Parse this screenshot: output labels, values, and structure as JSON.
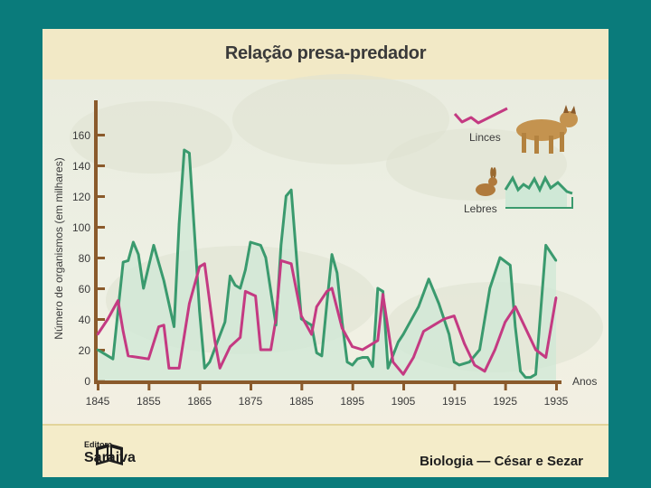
{
  "slide": {
    "title": "Relação presa-predador",
    "footer_left_top": "Editora",
    "footer_left_name": "Saraiva",
    "footer_right": "Biologia — César e Sezar"
  },
  "chart_data": {
    "type": "line",
    "title": "Relação presa-predador",
    "ylabel": "Número de organismos (em milhares)",
    "xlabel": "Anos",
    "ylim": [
      0,
      160
    ],
    "xlim": [
      1845,
      1935
    ],
    "x_ticks": [
      "1845",
      "1855",
      "1865",
      "1875",
      "1885",
      "1895",
      "1905",
      "1915",
      "1925",
      "1935"
    ],
    "y_ticks": [
      "0",
      "20",
      "40",
      "60",
      "80",
      "100",
      "120",
      "140",
      "160"
    ],
    "legend": [
      "Linces",
      "Lebres"
    ],
    "legend_position": "top-right",
    "colors": {
      "Lebres": "#3a9a6e",
      "Linces": "#c43a82",
      "axis": "#8a5a2b",
      "fill": "#cfe8d6"
    },
    "series": [
      {
        "name": "Lebres",
        "x": [
          1845,
          1848,
          1850,
          1851,
          1852,
          1853,
          1854,
          1855,
          1856,
          1858,
          1860,
          1861,
          1862,
          1863,
          1865,
          1866,
          1867,
          1870,
          1871,
          1872,
          1873,
          1874,
          1875,
          1877,
          1878,
          1880,
          1881,
          1882,
          1883,
          1884,
          1885,
          1887,
          1888,
          1889,
          1890,
          1891,
          1892,
          1893,
          1894,
          1895,
          1896,
          1897,
          1898,
          1899,
          1900,
          1901,
          1902,
          1904,
          1905,
          1906,
          1908,
          1910,
          1912,
          1914,
          1915,
          1916,
          1918,
          1920,
          1922,
          1924,
          1926,
          1927,
          1928,
          1929,
          1930,
          1931,
          1933,
          1935
        ],
        "values": [
          20,
          14,
          77,
          78,
          90,
          82,
          60,
          74,
          88,
          65,
          35,
          102,
          150,
          148,
          45,
          8,
          12,
          38,
          68,
          62,
          60,
          72,
          90,
          88,
          80,
          36,
          88,
          120,
          124,
          82,
          40,
          36,
          18,
          16,
          50,
          82,
          70,
          38,
          12,
          10,
          14,
          15,
          15,
          9,
          60,
          58,
          8,
          25,
          30,
          36,
          48,
          66,
          50,
          30,
          12,
          10,
          12,
          20,
          60,
          80,
          75,
          35,
          6,
          2,
          2,
          4,
          88,
          78
        ]
      },
      {
        "name": "Linces",
        "x": [
          1845,
          1847,
          1849,
          1850,
          1851,
          1853,
          1855,
          1857,
          1858,
          1859,
          1861,
          1863,
          1865,
          1866,
          1868,
          1869,
          1871,
          1873,
          1874,
          1876,
          1877,
          1879,
          1880,
          1881,
          1883,
          1885,
          1887,
          1888,
          1890,
          1891,
          1893,
          1895,
          1897,
          1899,
          1900,
          1901,
          1903,
          1905,
          1907,
          1909,
          1911,
          1913,
          1915,
          1917,
          1919,
          1921,
          1923,
          1925,
          1927,
          1929,
          1931,
          1933,
          1935
        ],
        "values": [
          30,
          40,
          52,
          32,
          16,
          15,
          14,
          35,
          36,
          8,
          8,
          50,
          74,
          76,
          26,
          8,
          22,
          28,
          58,
          55,
          20,
          20,
          40,
          78,
          76,
          42,
          30,
          48,
          58,
          60,
          34,
          22,
          20,
          24,
          26,
          56,
          12,
          4,
          15,
          32,
          36,
          40,
          42,
          24,
          10,
          6,
          20,
          38,
          48,
          34,
          20,
          15,
          54
        ]
      }
    ]
  }
}
